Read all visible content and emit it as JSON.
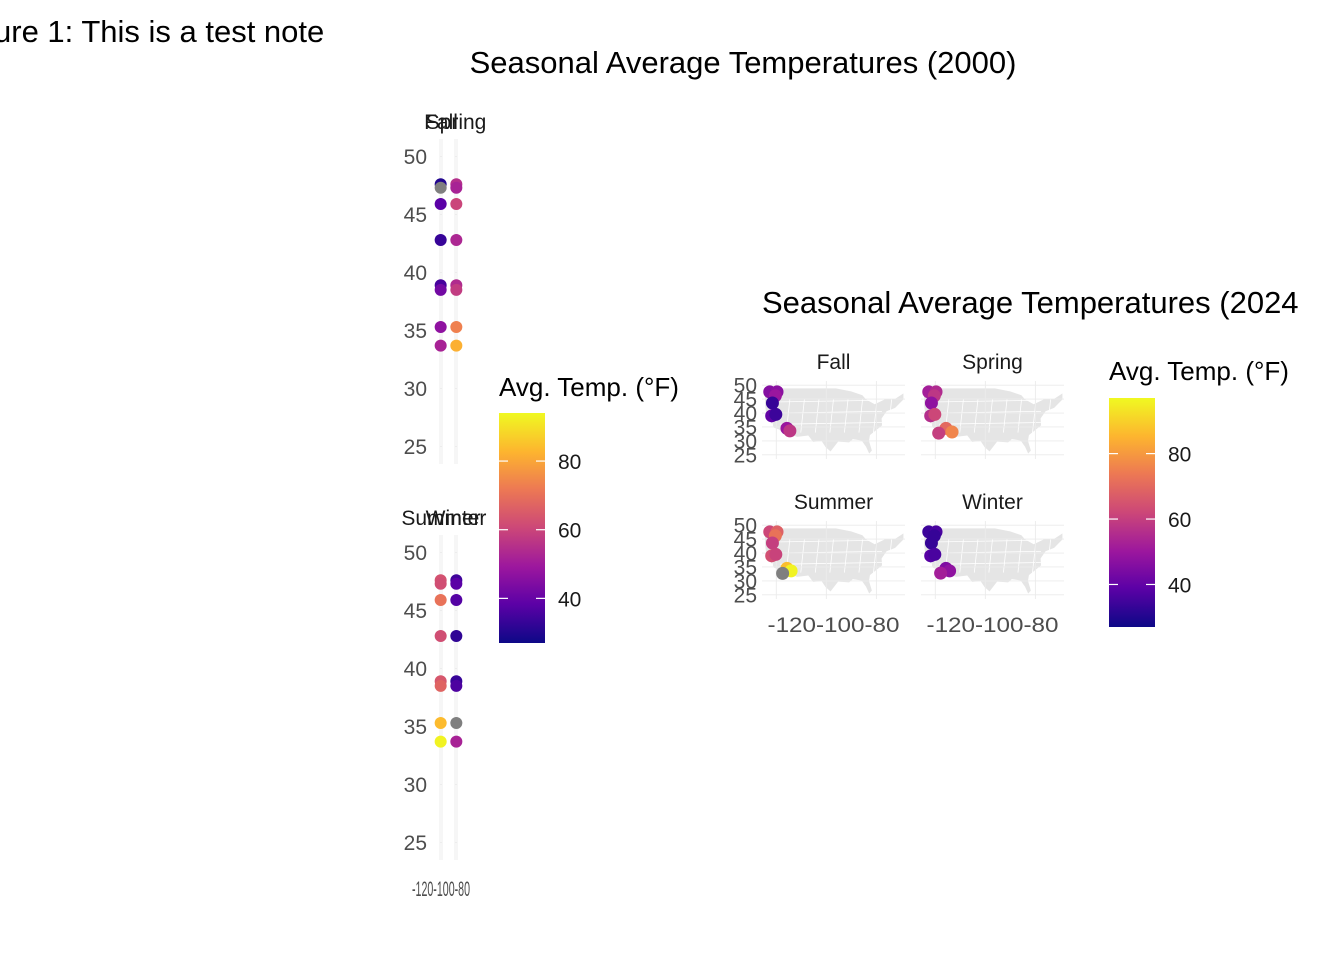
{
  "note": "ure 1: This is a test note",
  "palette": [
    "#0d0887",
    "#5c01a6",
    "#9c179e",
    "#cc4778",
    "#ed7953",
    "#fdb42f",
    "#f0f921"
  ],
  "na_color": "#7f7f7f",
  "chart_data": [
    {
      "type": "scatter",
      "title": "Seasonal Average Temperatures (2000)",
      "panels": [
        "Fall",
        "Spring",
        "Summer",
        "Winter"
      ],
      "y_ticks": [
        25,
        30,
        35,
        40,
        45,
        50
      ],
      "ylim": [
        23.5,
        51.5
      ],
      "x_ticks": [
        -120,
        -100,
        -80
      ],
      "x_tick_label": "-120-100-80",
      "xlim": [
        -124.5,
        -124.2
      ],
      "legend": {
        "title": "Avg. Temp. (°F)",
        "ticks": [
          40,
          60,
          80
        ],
        "range": [
          27,
          94
        ],
        "position": "right"
      },
      "series": {
        "Fall": [
          {
            "lon": -124.4,
            "lat": 47.6,
            "temp": 30
          },
          {
            "lon": -124.4,
            "lat": 47.3,
            "temp": null
          },
          {
            "lon": -124.4,
            "lat": 45.9,
            "temp": 38
          },
          {
            "lon": -124.4,
            "lat": 42.8,
            "temp": 33
          },
          {
            "lon": -124.4,
            "lat": 38.9,
            "temp": 35
          },
          {
            "lon": -124.4,
            "lat": 38.5,
            "temp": 42
          },
          {
            "lon": -124.4,
            "lat": 35.3,
            "temp": 47
          },
          {
            "lon": -124.4,
            "lat": 33.7,
            "temp": 52
          }
        ],
        "Spring": [
          {
            "lon": -124.3,
            "lat": 47.6,
            "temp": 55
          },
          {
            "lon": -124.3,
            "lat": 47.3,
            "temp": 52
          },
          {
            "lon": -124.3,
            "lat": 45.9,
            "temp": 60
          },
          {
            "lon": -124.3,
            "lat": 42.8,
            "temp": 53
          },
          {
            "lon": -124.3,
            "lat": 38.9,
            "temp": 54
          },
          {
            "lon": -124.3,
            "lat": 38.5,
            "temp": 58
          },
          {
            "lon": -124.3,
            "lat": 35.3,
            "temp": 73
          },
          {
            "lon": -124.3,
            "lat": 33.7,
            "temp": 82
          }
        ],
        "Summer": [
          {
            "lon": -124.4,
            "lat": 47.6,
            "temp": 63
          },
          {
            "lon": -124.4,
            "lat": 47.3,
            "temp": 62
          },
          {
            "lon": -124.4,
            "lat": 45.9,
            "temp": 70
          },
          {
            "lon": -124.4,
            "lat": 42.8,
            "temp": 62
          },
          {
            "lon": -124.4,
            "lat": 38.9,
            "temp": 64
          },
          {
            "lon": -124.4,
            "lat": 38.5,
            "temp": 67
          },
          {
            "lon": -124.4,
            "lat": 35.3,
            "temp": 84
          },
          {
            "lon": -124.4,
            "lat": 33.7,
            "temp": 93
          }
        ],
        "Winter": [
          {
            "lon": -124.3,
            "lat": 47.6,
            "temp": 34
          },
          {
            "lon": -124.3,
            "lat": 47.3,
            "temp": 38
          },
          {
            "lon": -124.3,
            "lat": 45.9,
            "temp": 37
          },
          {
            "lon": -124.3,
            "lat": 42.8,
            "temp": 32
          },
          {
            "lon": -124.3,
            "lat": 38.9,
            "temp": 33
          },
          {
            "lon": -124.3,
            "lat": 38.5,
            "temp": 36
          },
          {
            "lon": -124.3,
            "lat": 35.3,
            "temp": null
          },
          {
            "lon": -124.3,
            "lat": 33.7,
            "temp": 52
          }
        ]
      }
    },
    {
      "type": "scatter",
      "title": "Seasonal Average Temperatures (2024",
      "panels": [
        "Fall",
        "Spring",
        "Summer",
        "Winter"
      ],
      "y_ticks": [
        25,
        30,
        35,
        40,
        45,
        50
      ],
      "ylim": [
        23.5,
        51.5
      ],
      "x_ticks": [
        -120,
        -100,
        -80
      ],
      "x_tick_label": "-120-100-80",
      "xlim": [
        -125.5,
        -66.5
      ],
      "legend": {
        "title": "Avg. Temp. (°F)",
        "ticks": [
          40,
          60,
          80
        ],
        "range": [
          27,
          97
        ],
        "position": "right"
      },
      "series": {
        "Fall": [
          {
            "lon": -122.3,
            "lat": 47.6,
            "temp": 46
          },
          {
            "lon": -119.3,
            "lat": 47.6,
            "temp": 47
          },
          {
            "lon": -120.0,
            "lat": 46.2,
            "temp": 50
          },
          {
            "lon": -121.2,
            "lat": 43.6,
            "temp": 33
          },
          {
            "lon": -121.5,
            "lat": 39.0,
            "temp": 40
          },
          {
            "lon": -119.8,
            "lat": 39.5,
            "temp": 34
          },
          {
            "lon": -115.2,
            "lat": 34.5,
            "temp": 50
          },
          {
            "lon": -114.0,
            "lat": 33.6,
            "temp": 58
          }
        ],
        "Spring": [
          {
            "lon": -122.3,
            "lat": 47.6,
            "temp": 52
          },
          {
            "lon": -119.3,
            "lat": 47.6,
            "temp": 55
          },
          {
            "lon": -120.0,
            "lat": 46.2,
            "temp": 58
          },
          {
            "lon": -121.2,
            "lat": 43.6,
            "temp": 48
          },
          {
            "lon": -121.5,
            "lat": 39.0,
            "temp": 56
          },
          {
            "lon": -119.8,
            "lat": 39.5,
            "temp": 62
          },
          {
            "lon": -115.2,
            "lat": 34.5,
            "temp": 70
          },
          {
            "lon": -112.7,
            "lat": 33.2,
            "temp": 76
          },
          {
            "lon": -118.2,
            "lat": 32.8,
            "temp": 60
          }
        ],
        "Summer": [
          {
            "lon": -122.3,
            "lat": 47.6,
            "temp": 62
          },
          {
            "lon": -119.3,
            "lat": 47.6,
            "temp": 68
          },
          {
            "lon": -120.0,
            "lat": 46.2,
            "temp": 72
          },
          {
            "lon": -121.2,
            "lat": 43.6,
            "temp": 60
          },
          {
            "lon": -121.5,
            "lat": 39.0,
            "temp": 64
          },
          {
            "lon": -119.8,
            "lat": 39.5,
            "temp": 61
          },
          {
            "lon": -115.2,
            "lat": 34.5,
            "temp": 87
          },
          {
            "lon": -113.5,
            "lat": 33.6,
            "temp": 96
          },
          {
            "lon": -117.0,
            "lat": 32.7,
            "temp": null
          }
        ],
        "Winter": [
          {
            "lon": -122.3,
            "lat": 47.6,
            "temp": 34
          },
          {
            "lon": -119.3,
            "lat": 47.6,
            "temp": 36
          },
          {
            "lon": -120.0,
            "lat": 46.2,
            "temp": 33
          },
          {
            "lon": -121.2,
            "lat": 43.6,
            "temp": 33
          },
          {
            "lon": -121.5,
            "lat": 39.0,
            "temp": 38
          },
          {
            "lon": -119.8,
            "lat": 39.5,
            "temp": 36
          },
          {
            "lon": -115.2,
            "lat": 34.5,
            "temp": 45
          },
          {
            "lon": -113.7,
            "lat": 33.6,
            "temp": 48
          },
          {
            "lon": -117.4,
            "lat": 32.8,
            "temp": 52
          }
        ]
      }
    }
  ]
}
